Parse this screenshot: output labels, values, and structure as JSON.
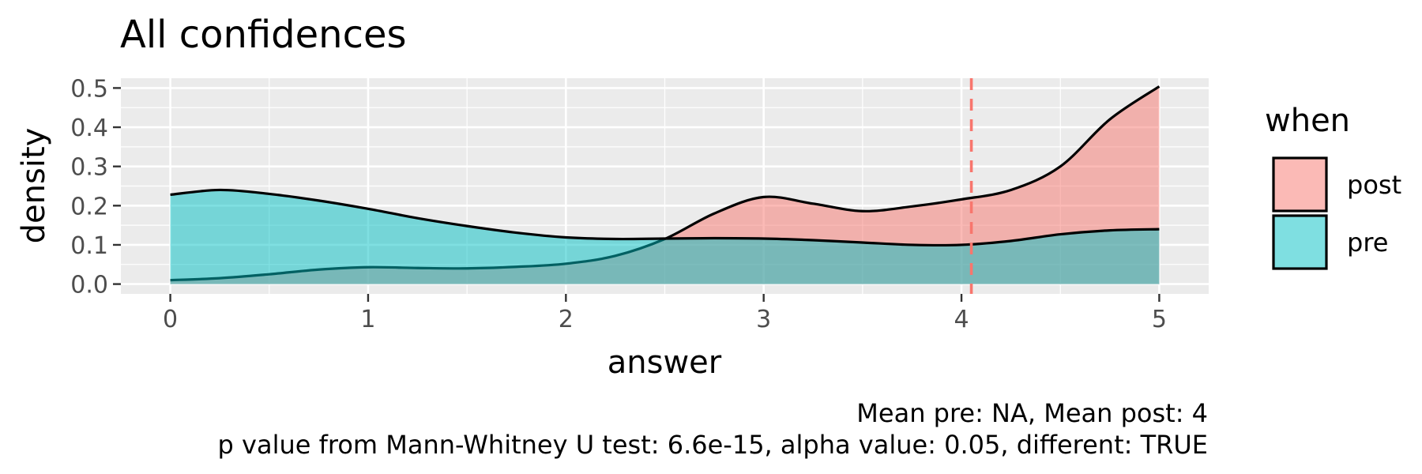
{
  "chart_data": {
    "type": "area",
    "title": "All confidences",
    "xlabel": "answer",
    "ylabel": "density",
    "xlim": [
      -0.25,
      5.25
    ],
    "ylim": [
      -0.025,
      0.525
    ],
    "x_ticks": [
      0,
      1,
      2,
      3,
      4,
      5
    ],
    "x_tick_labels": [
      "0",
      "1",
      "2",
      "3",
      "4",
      "5"
    ],
    "y_ticks": [
      0.0,
      0.1,
      0.2,
      0.3,
      0.4,
      0.5
    ],
    "y_tick_labels": [
      "0.0",
      "0.1",
      "0.2",
      "0.3",
      "0.4",
      "0.5"
    ],
    "grid": true,
    "legend": {
      "title": "when",
      "position": "right",
      "entries": [
        "post",
        "pre"
      ]
    },
    "series": [
      {
        "name": "post",
        "color": "#F8766D",
        "x": [
          0,
          0.25,
          0.5,
          0.75,
          1.0,
          1.25,
          1.5,
          1.75,
          2.0,
          2.25,
          2.5,
          2.75,
          3.0,
          3.25,
          3.5,
          3.75,
          4.0,
          4.25,
          4.5,
          4.75,
          5.0
        ],
        "y": [
          0.01,
          0.015,
          0.025,
          0.037,
          0.043,
          0.041,
          0.04,
          0.044,
          0.052,
          0.072,
          0.115,
          0.18,
          0.222,
          0.205,
          0.186,
          0.198,
          0.216,
          0.24,
          0.3,
          0.42,
          0.504
        ]
      },
      {
        "name": "pre",
        "color": "#00BFC4",
        "x": [
          0,
          0.25,
          0.5,
          0.75,
          1.0,
          1.25,
          1.5,
          1.75,
          2.0,
          2.25,
          2.5,
          2.75,
          3.0,
          3.25,
          3.5,
          3.75,
          4.0,
          4.25,
          4.5,
          4.75,
          5.0
        ],
        "y": [
          0.228,
          0.24,
          0.23,
          0.213,
          0.192,
          0.168,
          0.148,
          0.131,
          0.119,
          0.115,
          0.116,
          0.117,
          0.116,
          0.112,
          0.106,
          0.1,
          0.1,
          0.11,
          0.127,
          0.137,
          0.14
        ]
      }
    ],
    "reference_line": {
      "x": 4.05,
      "color": "#F8766D",
      "style": "dashed"
    },
    "caption": [
      "Mean pre: NA, Mean post: 4",
      "p value from Mann-Whitney U test: 6.6e-15, alpha value: 0.05, different: TRUE"
    ]
  }
}
